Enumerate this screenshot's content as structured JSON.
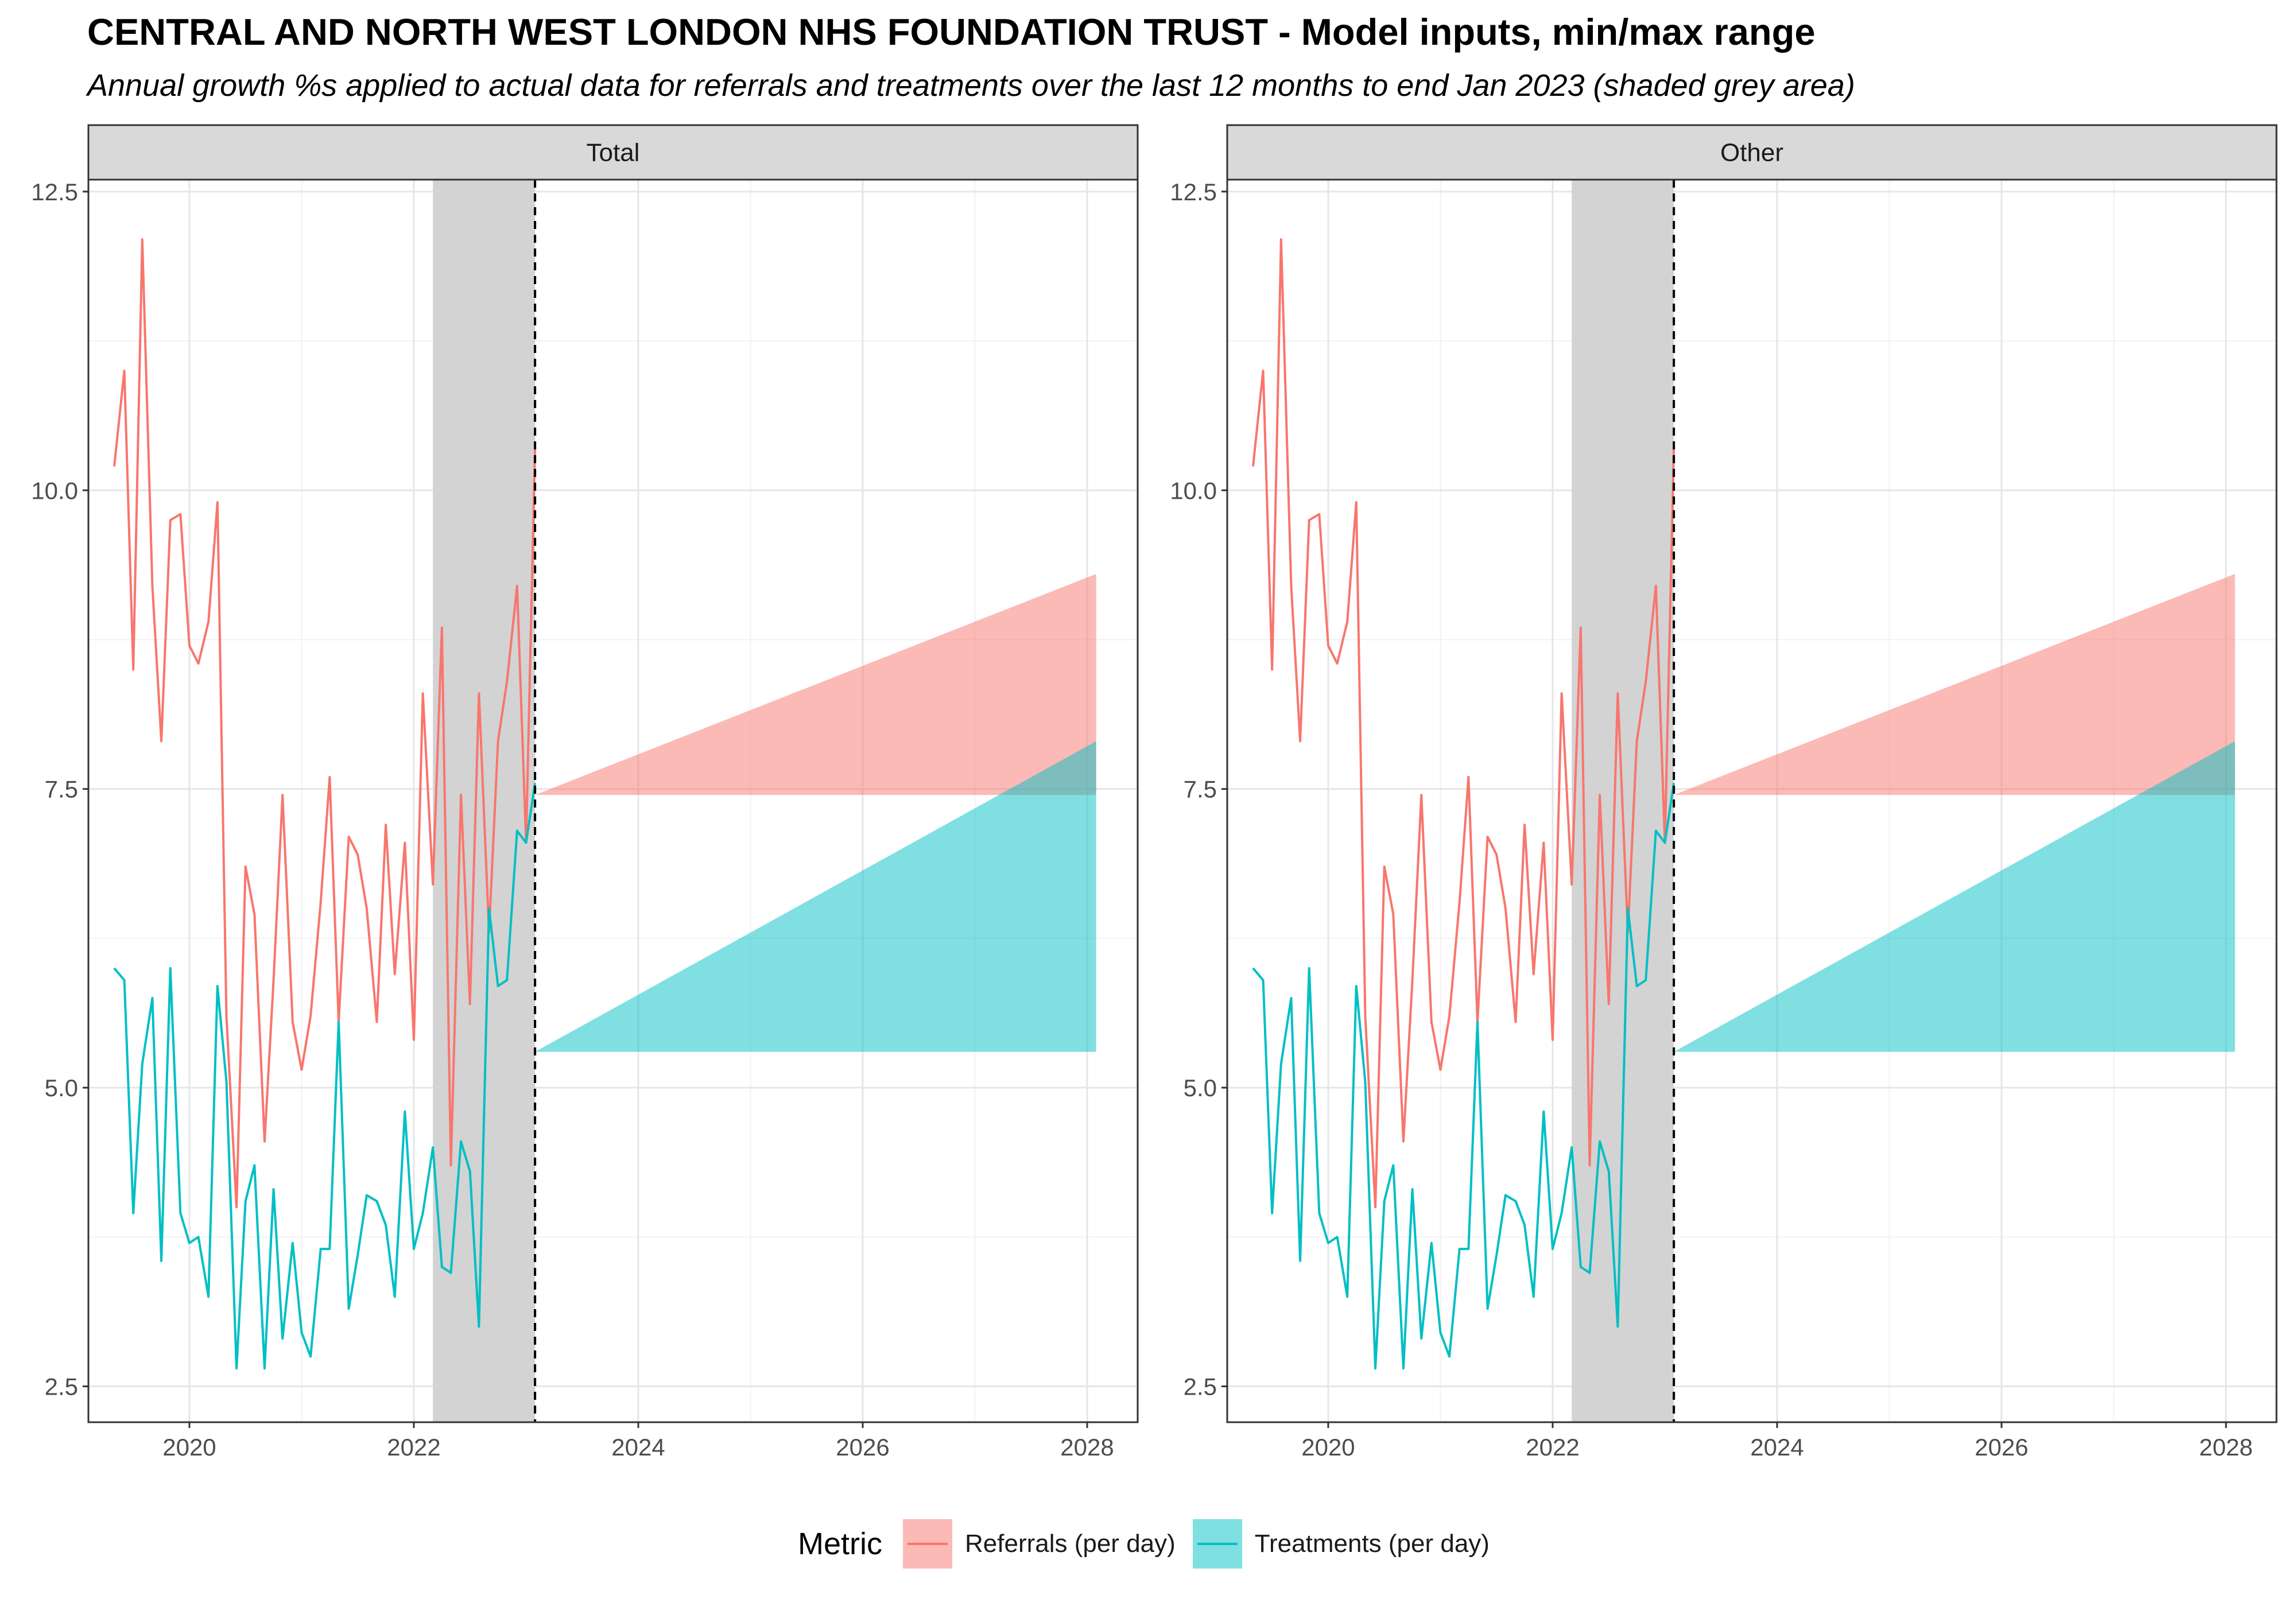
{
  "title": "CENTRAL AND NORTH WEST LONDON NHS FOUNDATION TRUST - Model inputs, min/max range",
  "subtitle": "Annual growth %s applied to actual data for referrals and treatments over the last 12 months to end Jan 2023 (shaded grey area)",
  "legend": {
    "title": "Metric",
    "items": [
      {
        "label": "Referrals (per day)",
        "color": "#F8766D"
      },
      {
        "label": "Treatments (per day)",
        "color": "#00BFC4"
      }
    ]
  },
  "chart_data": {
    "type": "line",
    "panels": [
      "Total",
      "Other"
    ],
    "x_ticks": [
      2020,
      2022,
      2024,
      2026,
      2028
    ],
    "y_ticks": [
      "2.5",
      "5.0",
      "7.5",
      "10.0",
      "12.5"
    ],
    "xlim": [
      2019.1,
      2028.45
    ],
    "ylim": [
      2.2,
      12.6
    ],
    "shaded_period": [
      2022.17,
      2023.08
    ],
    "forecast_start": 2023.08,
    "series": [
      {
        "name": "Referrals (per day)",
        "color": "#F8766D",
        "x": [
          2019.33,
          2019.42,
          2019.5,
          2019.58,
          2019.67,
          2019.75,
          2019.83,
          2019.92,
          2020.0,
          2020.08,
          2020.17,
          2020.25,
          2020.33,
          2020.42,
          2020.5,
          2020.58,
          2020.67,
          2020.75,
          2020.83,
          2020.92,
          2021.0,
          2021.08,
          2021.17,
          2021.25,
          2021.33,
          2021.42,
          2021.5,
          2021.58,
          2021.67,
          2021.75,
          2021.83,
          2021.92,
          2022.0,
          2022.08,
          2022.17,
          2022.25,
          2022.33,
          2022.42,
          2022.5,
          2022.58,
          2022.67,
          2022.75,
          2022.83,
          2022.92,
          2023.0,
          2023.08
        ],
        "values": [
          10.2,
          11.0,
          8.5,
          12.1,
          9.2,
          7.9,
          9.75,
          9.8,
          8.7,
          8.55,
          8.9,
          9.9,
          5.6,
          4.0,
          6.85,
          6.45,
          4.55,
          5.9,
          7.45,
          5.55,
          5.15,
          5.6,
          6.55,
          7.6,
          5.55,
          7.1,
          6.95,
          6.5,
          5.55,
          7.2,
          5.95,
          7.05,
          5.4,
          8.3,
          6.7,
          8.85,
          4.35,
          7.45,
          5.7,
          8.3,
          6.3,
          7.9,
          8.4,
          9.2,
          7.05,
          10.35
        ]
      },
      {
        "name": "Treatments (per day)",
        "color": "#00BFC4",
        "x": [
          2019.33,
          2019.42,
          2019.5,
          2019.58,
          2019.67,
          2019.75,
          2019.83,
          2019.92,
          2020.0,
          2020.08,
          2020.17,
          2020.25,
          2020.33,
          2020.42,
          2020.5,
          2020.58,
          2020.67,
          2020.75,
          2020.83,
          2020.92,
          2021.0,
          2021.08,
          2021.17,
          2021.25,
          2021.33,
          2021.42,
          2021.5,
          2021.58,
          2021.67,
          2021.75,
          2021.83,
          2021.92,
          2022.0,
          2022.08,
          2022.17,
          2022.25,
          2022.33,
          2022.42,
          2022.5,
          2022.58,
          2022.67,
          2022.75,
          2022.83,
          2022.92,
          2023.0,
          2023.08
        ],
        "values": [
          6.0,
          5.9,
          3.95,
          5.2,
          5.75,
          3.55,
          6.0,
          3.95,
          3.7,
          3.75,
          3.25,
          5.85,
          5.05,
          2.65,
          4.05,
          4.35,
          2.65,
          4.15,
          2.9,
          3.7,
          2.95,
          2.75,
          3.65,
          3.65,
          5.55,
          3.15,
          3.6,
          4.1,
          4.05,
          3.85,
          3.25,
          4.8,
          3.65,
          3.95,
          4.5,
          3.5,
          3.45,
          4.55,
          4.3,
          3.0,
          6.5,
          5.85,
          5.9,
          7.15,
          7.05,
          7.55
        ]
      }
    ],
    "ranges": [
      {
        "name": "Referrals (per day)",
        "color": "#F8766D",
        "x": [
          2023.08,
          2028.08
        ],
        "min": [
          7.45,
          7.45
        ],
        "max": [
          7.45,
          9.3
        ]
      },
      {
        "name": "Treatments (per day)",
        "color": "#00BFC4",
        "x": [
          2023.08,
          2028.08
        ],
        "min": [
          5.3,
          5.3
        ],
        "max": [
          5.3,
          7.9
        ]
      }
    ],
    "grid": true,
    "legend_position": "bottom"
  }
}
